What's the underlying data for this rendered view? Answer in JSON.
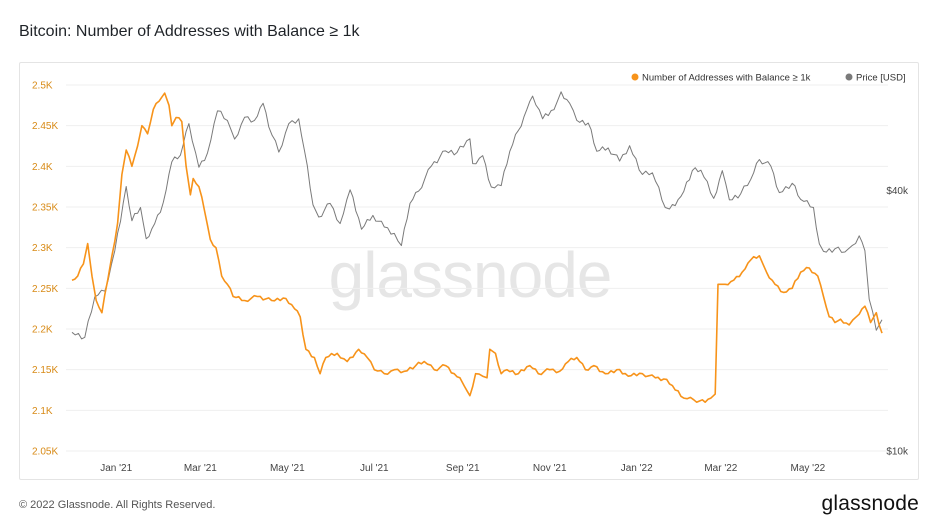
{
  "title": "Bitcoin: Number of Addresses with Balance ≥ 1k",
  "footer": {
    "copyright": "© 2022 Glassnode. All Rights Reserved.",
    "logo": "glassnode"
  },
  "watermark": "glassnode",
  "chart_data": {
    "type": "line",
    "title": "Bitcoin: Number of Addresses with Balance ≥ 1k",
    "x_tick_labels": [
      "Jan '21",
      "Mar '21",
      "May '21",
      "Jul '21",
      "Sep '21",
      "Nov '21",
      "Jan '22",
      "Mar '22",
      "May '22"
    ],
    "x_range": [
      "2020-12-01",
      "2022-06-22"
    ],
    "left_axis": {
      "labels": [
        "2.05K",
        "2.1K",
        "2.15K",
        "2.2K",
        "2.25K",
        "2.3K",
        "2.35K",
        "2.4K",
        "2.45K",
        "2.5K"
      ],
      "ticks": [
        2050,
        2100,
        2150,
        2200,
        2250,
        2300,
        2350,
        2400,
        2450,
        2500
      ],
      "ylim": [
        2050,
        2500
      ]
    },
    "right_axis": {
      "labels": [
        "$10k",
        "$40k"
      ],
      "ticks": [
        10000,
        40000
      ],
      "scale": "log",
      "ylim": [
        10000,
        70000
      ]
    },
    "legend": [
      {
        "name": "Number of Addresses with Balance ≥ 1k",
        "color": "#f7931a"
      },
      {
        "name": "Price [USD]",
        "color": "#7a7a7a"
      }
    ],
    "legend_position": "top-right",
    "series": [
      {
        "name": "Number of Addresses with Balance ≥ 1k",
        "axis": "left",
        "color": "#f7931a",
        "points": [
          [
            "2020-12-01",
            2260
          ],
          [
            "2020-12-05",
            2265
          ],
          [
            "2020-12-09",
            2280
          ],
          [
            "2020-12-12",
            2305
          ],
          [
            "2020-12-15",
            2265
          ],
          [
            "2020-12-18",
            2235
          ],
          [
            "2020-12-22",
            2220
          ],
          [
            "2020-12-26",
            2260
          ],
          [
            "2020-12-29",
            2290
          ],
          [
            "2021-01-02",
            2330
          ],
          [
            "2021-01-05",
            2390
          ],
          [
            "2021-01-08",
            2420
          ],
          [
            "2021-01-12",
            2400
          ],
          [
            "2021-01-16",
            2425
          ],
          [
            "2021-01-19",
            2450
          ],
          [
            "2021-01-23",
            2440
          ],
          [
            "2021-01-27",
            2470
          ],
          [
            "2021-01-31",
            2480
          ],
          [
            "2021-02-04",
            2490
          ],
          [
            "2021-02-07",
            2475
          ],
          [
            "2021-02-09",
            2450
          ],
          [
            "2021-02-12",
            2460
          ],
          [
            "2021-02-16",
            2455
          ],
          [
            "2021-02-19",
            2400
          ],
          [
            "2021-02-22",
            2365
          ],
          [
            "2021-02-24",
            2385
          ],
          [
            "2021-02-28",
            2375
          ],
          [
            "2021-03-04",
            2345
          ],
          [
            "2021-03-08",
            2310
          ],
          [
            "2021-03-12",
            2300
          ],
          [
            "2021-03-16",
            2265
          ],
          [
            "2021-03-20",
            2255
          ],
          [
            "2021-03-24",
            2240
          ],
          [
            "2021-04-01",
            2235
          ],
          [
            "2021-04-10",
            2240
          ],
          [
            "2021-04-20",
            2235
          ],
          [
            "2021-04-28",
            2238
          ],
          [
            "2021-05-04",
            2230
          ],
          [
            "2021-05-10",
            2215
          ],
          [
            "2021-05-14",
            2175
          ],
          [
            "2021-05-20",
            2165
          ],
          [
            "2021-05-24",
            2145
          ],
          [
            "2021-05-28",
            2165
          ],
          [
            "2021-06-05",
            2170
          ],
          [
            "2021-06-12",
            2160
          ],
          [
            "2021-06-20",
            2175
          ],
          [
            "2021-06-26",
            2165
          ],
          [
            "2021-07-01",
            2150
          ],
          [
            "2021-07-08",
            2145
          ],
          [
            "2021-07-15",
            2150
          ],
          [
            "2021-07-22",
            2148
          ],
          [
            "2021-07-30",
            2155
          ],
          [
            "2021-08-05",
            2160
          ],
          [
            "2021-08-12",
            2150
          ],
          [
            "2021-08-20",
            2155
          ],
          [
            "2021-08-26",
            2145
          ],
          [
            "2021-08-30",
            2140
          ],
          [
            "2021-09-02",
            2130
          ],
          [
            "2021-09-06",
            2118
          ],
          [
            "2021-09-10",
            2145
          ],
          [
            "2021-09-15",
            2142
          ],
          [
            "2021-09-18",
            2140
          ],
          [
            "2021-09-20",
            2175
          ],
          [
            "2021-09-24",
            2170
          ],
          [
            "2021-09-28",
            2145
          ],
          [
            "2021-10-02",
            2150
          ],
          [
            "2021-10-10",
            2145
          ],
          [
            "2021-10-18",
            2155
          ],
          [
            "2021-10-24",
            2145
          ],
          [
            "2021-11-01",
            2150
          ],
          [
            "2021-11-08",
            2148
          ],
          [
            "2021-11-14",
            2160
          ],
          [
            "2021-11-20",
            2165
          ],
          [
            "2021-11-26",
            2150
          ],
          [
            "2021-12-02",
            2155
          ],
          [
            "2021-12-10",
            2145
          ],
          [
            "2021-12-18",
            2150
          ],
          [
            "2021-12-26",
            2142
          ],
          [
            "2022-01-05",
            2145
          ],
          [
            "2022-01-14",
            2140
          ],
          [
            "2022-01-22",
            2138
          ],
          [
            "2022-01-28",
            2125
          ],
          [
            "2022-02-03",
            2115
          ],
          [
            "2022-02-10",
            2113
          ],
          [
            "2022-02-18",
            2110
          ],
          [
            "2022-02-22",
            2115
          ],
          [
            "2022-02-25",
            2120
          ],
          [
            "2022-02-27",
            2255
          ],
          [
            "2022-03-04",
            2255
          ],
          [
            "2022-03-10",
            2260
          ],
          [
            "2022-03-16",
            2270
          ],
          [
            "2022-03-22",
            2285
          ],
          [
            "2022-03-28",
            2290
          ],
          [
            "2022-04-02",
            2270
          ],
          [
            "2022-04-08",
            2255
          ],
          [
            "2022-04-14",
            2245
          ],
          [
            "2022-04-20",
            2250
          ],
          [
            "2022-04-26",
            2270
          ],
          [
            "2022-05-02",
            2275
          ],
          [
            "2022-05-08",
            2265
          ],
          [
            "2022-05-12",
            2240
          ],
          [
            "2022-05-16",
            2215
          ],
          [
            "2022-05-20",
            2208
          ],
          [
            "2022-05-24",
            2212
          ],
          [
            "2022-05-30",
            2205
          ],
          [
            "2022-06-04",
            2215
          ],
          [
            "2022-06-10",
            2228
          ],
          [
            "2022-06-14",
            2208
          ],
          [
            "2022-06-18",
            2220
          ],
          [
            "2022-06-22",
            2195
          ]
        ]
      },
      {
        "name": "Price [USD]",
        "axis": "right",
        "color": "#7a7a7a",
        "points": [
          [
            "2020-12-01",
            18800
          ],
          [
            "2020-12-10",
            18300
          ],
          [
            "2020-12-17",
            22700
          ],
          [
            "2020-12-24",
            23400
          ],
          [
            "2020-12-31",
            29000
          ],
          [
            "2021-01-08",
            40800
          ],
          [
            "2021-01-12",
            34000
          ],
          [
            "2021-01-18",
            36500
          ],
          [
            "2021-01-22",
            30900
          ],
          [
            "2021-01-28",
            33500
          ],
          [
            "2021-02-03",
            37500
          ],
          [
            "2021-02-09",
            46500
          ],
          [
            "2021-02-15",
            48200
          ],
          [
            "2021-02-21",
            57000
          ],
          [
            "2021-02-28",
            45200
          ],
          [
            "2021-03-06",
            48800
          ],
          [
            "2021-03-13",
            61000
          ],
          [
            "2021-03-20",
            58000
          ],
          [
            "2021-03-25",
            52500
          ],
          [
            "2021-04-01",
            59000
          ],
          [
            "2021-04-08",
            58000
          ],
          [
            "2021-04-14",
            63500
          ],
          [
            "2021-04-18",
            56000
          ],
          [
            "2021-04-25",
            49000
          ],
          [
            "2021-05-02",
            57000
          ],
          [
            "2021-05-09",
            58500
          ],
          [
            "2021-05-13",
            49500
          ],
          [
            "2021-05-19",
            37000
          ],
          [
            "2021-05-23",
            34700
          ],
          [
            "2021-05-31",
            37300
          ],
          [
            "2021-06-07",
            33500
          ],
          [
            "2021-06-14",
            40100
          ],
          [
            "2021-06-22",
            32500
          ],
          [
            "2021-06-30",
            35000
          ],
          [
            "2021-07-08",
            32900
          ],
          [
            "2021-07-15",
            31800
          ],
          [
            "2021-07-20",
            29800
          ],
          [
            "2021-07-26",
            37300
          ],
          [
            "2021-08-01",
            39800
          ],
          [
            "2021-08-10",
            45500
          ],
          [
            "2021-08-20",
            49300
          ],
          [
            "2021-08-28",
            48900
          ],
          [
            "2021-09-06",
            52600
          ],
          [
            "2021-09-08",
            46100
          ],
          [
            "2021-09-15",
            48100
          ],
          [
            "2021-09-21",
            40700
          ],
          [
            "2021-09-28",
            41000
          ],
          [
            "2021-10-04",
            49200
          ],
          [
            "2021-10-10",
            55000
          ],
          [
            "2021-10-16",
            61500
          ],
          [
            "2021-10-20",
            66000
          ],
          [
            "2021-10-27",
            58500
          ],
          [
            "2021-11-04",
            61400
          ],
          [
            "2021-11-09",
            67500
          ],
          [
            "2021-11-15",
            63500
          ],
          [
            "2021-11-20",
            58000
          ],
          [
            "2021-11-28",
            57200
          ],
          [
            "2021-12-04",
            49200
          ],
          [
            "2021-12-12",
            50100
          ],
          [
            "2021-12-20",
            46700
          ],
          [
            "2021-12-27",
            50700
          ],
          [
            "2022-01-05",
            43500
          ],
          [
            "2022-01-12",
            43900
          ],
          [
            "2022-01-21",
            36500
          ],
          [
            "2022-01-24",
            36200
          ],
          [
            "2022-02-01",
            38700
          ],
          [
            "2022-02-09",
            44400
          ],
          [
            "2022-02-15",
            44500
          ],
          [
            "2022-02-24",
            38300
          ],
          [
            "2022-03-02",
            44400
          ],
          [
            "2022-03-07",
            38000
          ],
          [
            "2022-03-15",
            39300
          ],
          [
            "2022-03-22",
            42400
          ],
          [
            "2022-03-28",
            47100
          ],
          [
            "2022-04-05",
            45500
          ],
          [
            "2022-04-11",
            39500
          ],
          [
            "2022-04-20",
            41500
          ],
          [
            "2022-04-26",
            38100
          ],
          [
            "2022-05-05",
            36500
          ],
          [
            "2022-05-09",
            30100
          ],
          [
            "2022-05-12",
            28900
          ],
          [
            "2022-05-20",
            29300
          ],
          [
            "2022-05-27",
            28800
          ],
          [
            "2022-06-01",
            29800
          ],
          [
            "2022-06-06",
            31400
          ],
          [
            "2022-06-10",
            29000
          ],
          [
            "2022-06-13",
            22400
          ],
          [
            "2022-06-18",
            19000
          ],
          [
            "2022-06-22",
            20100
          ]
        ]
      }
    ]
  }
}
